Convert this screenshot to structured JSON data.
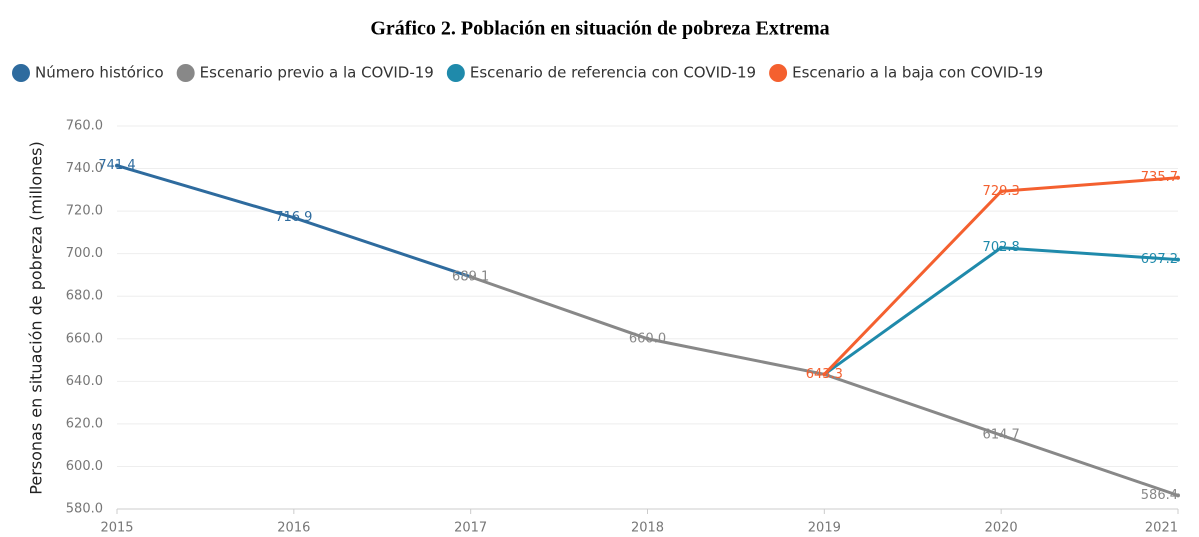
{
  "chart_data": {
    "type": "line",
    "title": "Gráfico 2. Población en situación de pobreza Extrema",
    "y_label": "Personas en situación de pobreza (millones)",
    "x": [
      2015,
      2016,
      2017,
      2018,
      2019,
      2020,
      2021
    ],
    "xlim": [
      2015,
      2021
    ],
    "xticks": [
      2015,
      2016,
      2017,
      2018,
      2019,
      2020,
      2021
    ],
    "ylim": [
      580,
      760
    ],
    "yticks": [
      {
        "value": 580,
        "label": "580.0"
      },
      {
        "value": 600,
        "label": "600.0"
      },
      {
        "value": 620,
        "label": "620.0"
      },
      {
        "value": 640,
        "label": "640.0"
      },
      {
        "value": 660,
        "label": "660.0"
      },
      {
        "value": 680,
        "label": "680.0"
      },
      {
        "value": 700,
        "label": "700.0"
      },
      {
        "value": 720,
        "label": "720.0"
      },
      {
        "value": 740,
        "label": "740.0"
      },
      {
        "value": 760,
        "label": "760.0"
      }
    ],
    "grid": true,
    "legend": "top",
    "series": [
      {
        "name": "Número histórico",
        "color": "#2e6b9e",
        "values": [
          741.4,
          716.9,
          689.1,
          null,
          null,
          null,
          null
        ],
        "value_labels": [
          "741.4",
          "716.9",
          null,
          null,
          null,
          null,
          null
        ]
      },
      {
        "name": "Escenario previo a la COVID-19",
        "color": "#888888",
        "values": [
          null,
          null,
          689.1,
          660,
          643.3,
          614.7,
          586.4
        ],
        "value_labels": [
          null,
          null,
          "689.1",
          "660.0",
          null,
          "614.7",
          "586.4"
        ]
      },
      {
        "name": "Escenario de referencia con COVID-19",
        "color": "#1f8aab",
        "values": [
          null,
          null,
          null,
          null,
          643.3,
          702.8,
          697.2
        ],
        "value_labels": [
          null,
          null,
          null,
          null,
          null,
          "702.8",
          "697.2"
        ]
      },
      {
        "name": "Escenario a la baja con COVID-19",
        "color": "#f4602f",
        "values": [
          null,
          null,
          null,
          null,
          643.3,
          729.3,
          735.7
        ],
        "value_labels": [
          null,
          null,
          null,
          null,
          "643.3",
          "729.3",
          "735.7"
        ]
      }
    ]
  }
}
